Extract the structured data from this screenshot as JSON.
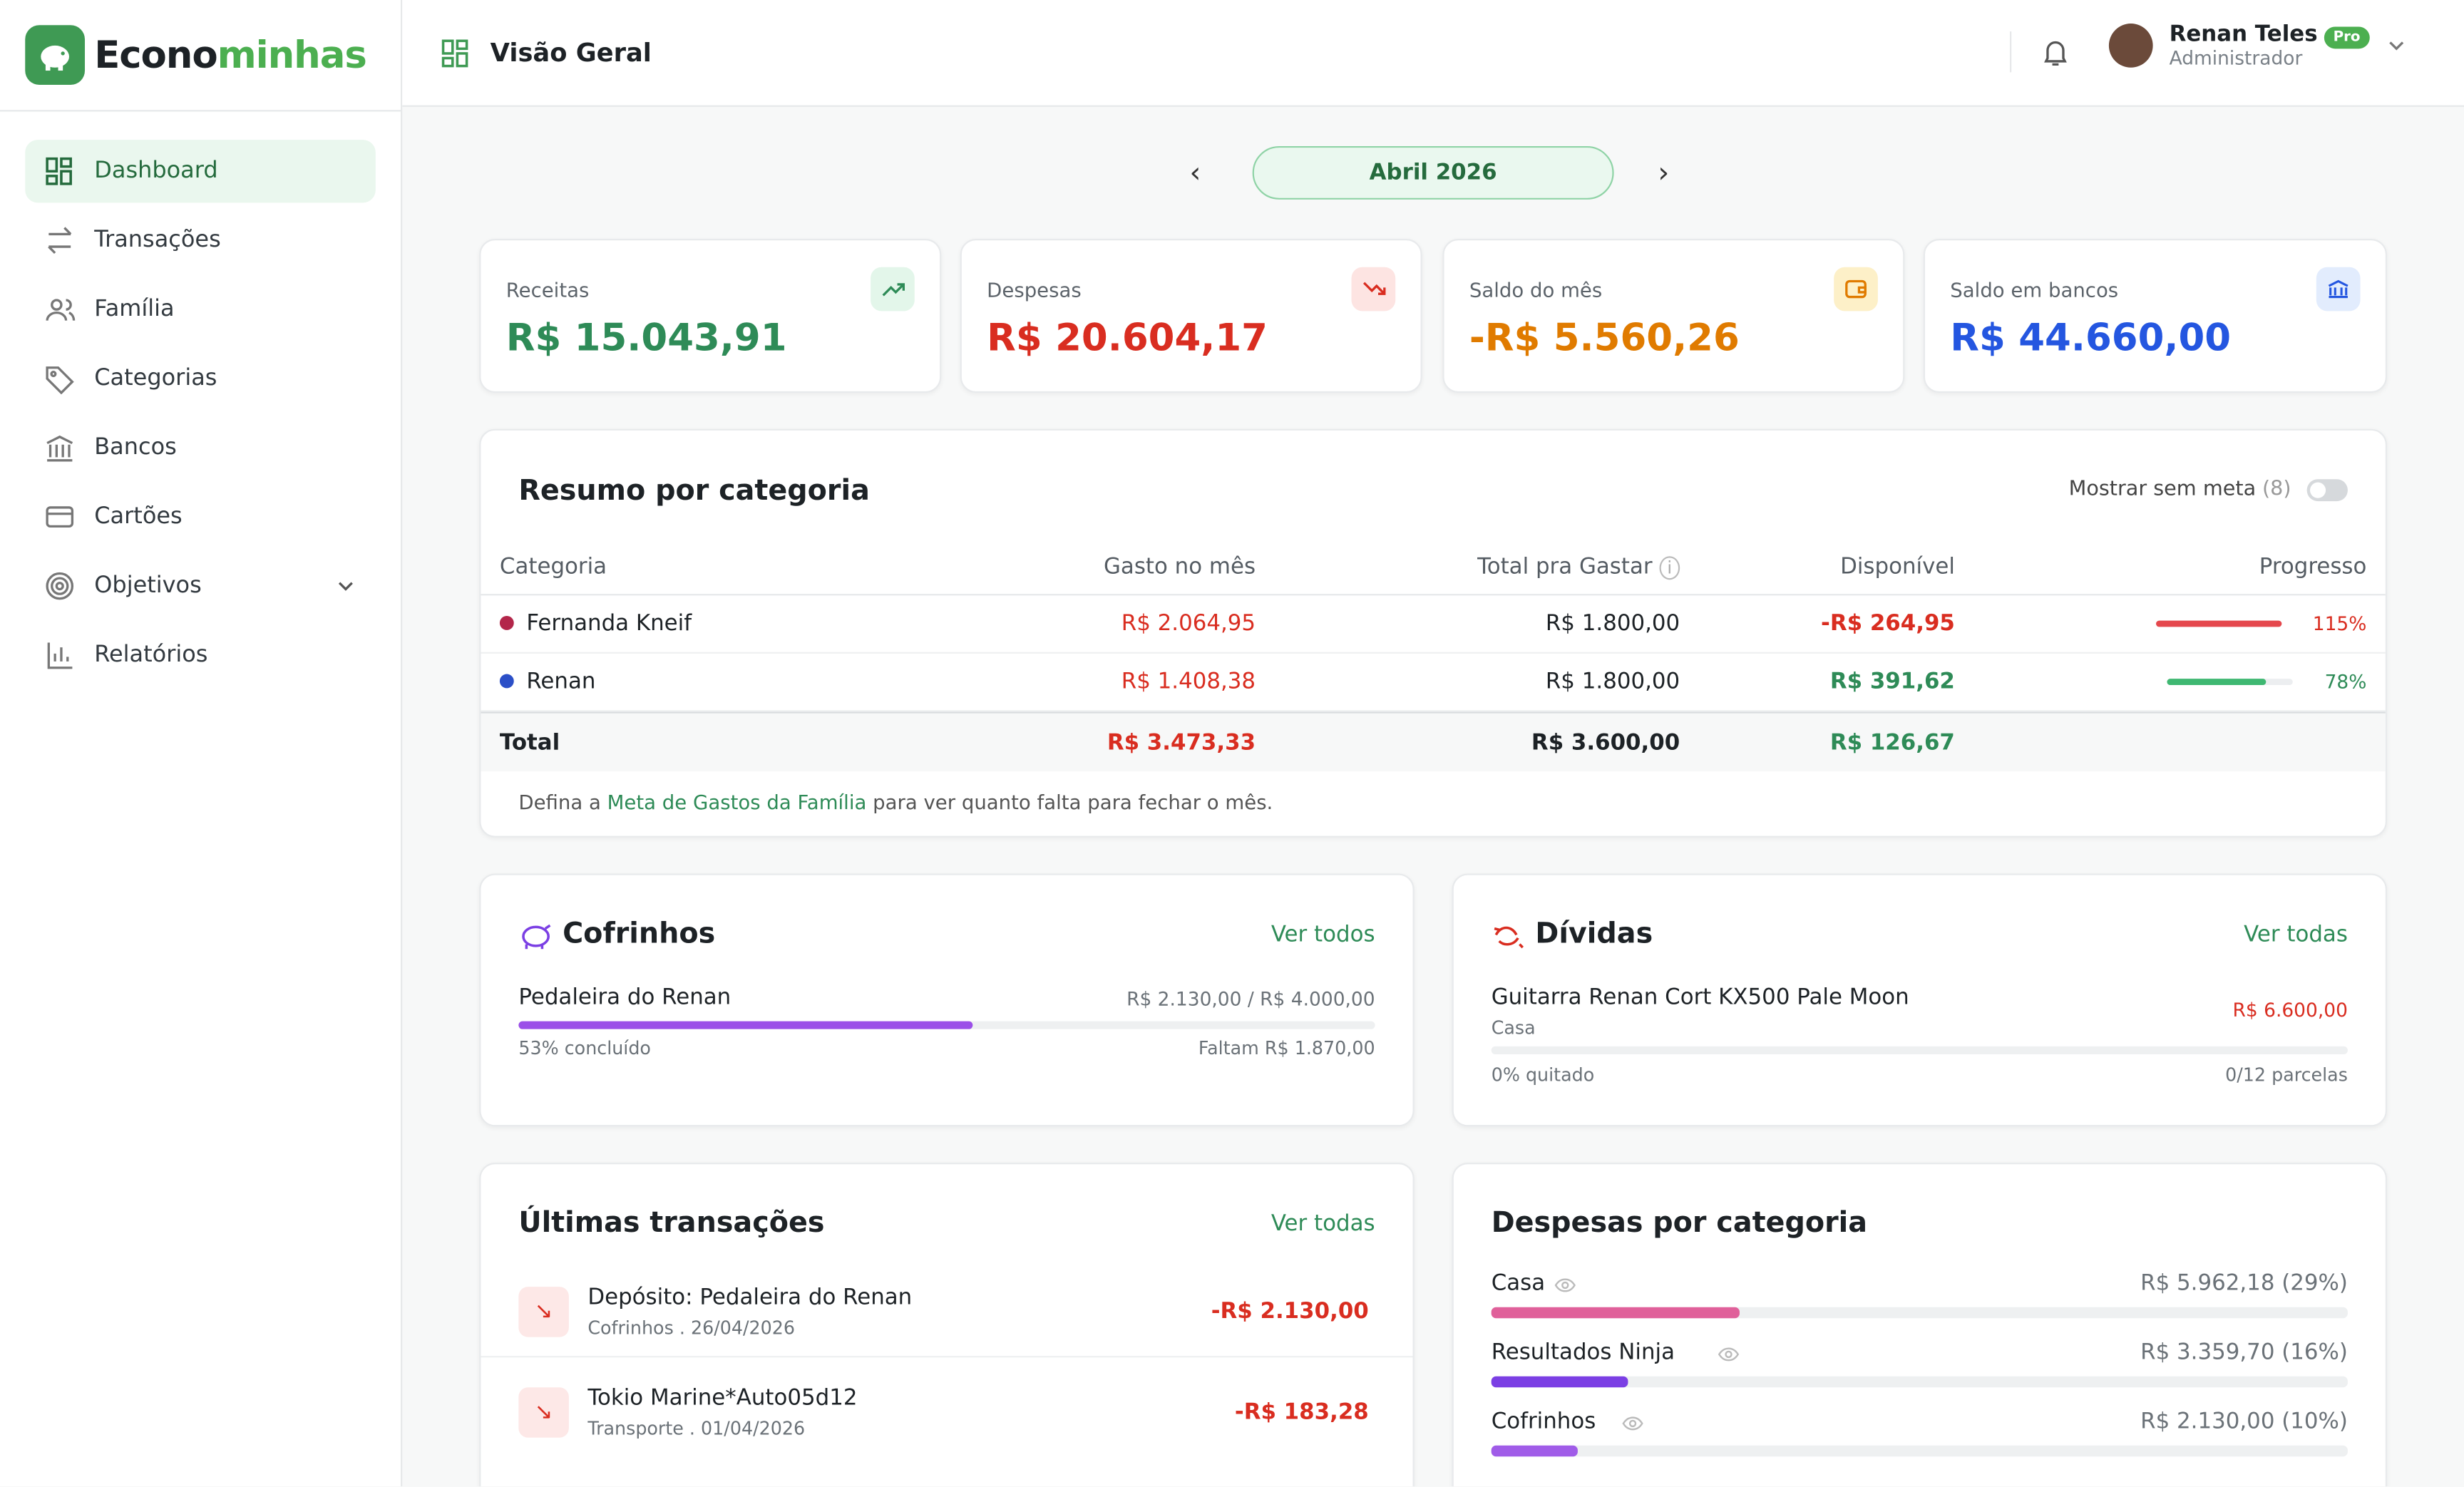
{
  "brand": [
    "Econo",
    "minhas"
  ],
  "nav": [
    "Dashboard",
    "Transações",
    "Família",
    "Categorias",
    "Bancos",
    "Cartões",
    "Objetivos",
    "Relatórios"
  ],
  "header": {
    "title": "Visão Geral",
    "user_name": "Renan Teles",
    "user_role": "Administrador",
    "badge": "Pro"
  },
  "month": "Abril 2026",
  "kpis": [
    {
      "label": "Receitas",
      "value": "R$ 15.043,91"
    },
    {
      "label": "Despesas",
      "value": "R$ 20.604,17"
    },
    {
      "label": "Saldo do mês",
      "value": "-R$ 5.560,26"
    },
    {
      "label": "Saldo em bancos",
      "value": "R$ 44.660,00"
    }
  ],
  "summary": {
    "title": "Resumo por categoria",
    "toggle_label": "Mostrar sem meta",
    "toggle_count": "(8)",
    "columns": [
      "Categoria",
      "Gasto no mês",
      "Total pra Gastar",
      "Disponível",
      "Progresso"
    ],
    "rows": [
      [
        "Fernanda Kneif",
        "R$ 2.064,95",
        "R$ 1.800,00",
        "-R$ 264,95",
        "115%"
      ],
      [
        "Renan",
        "R$ 1.408,38",
        "R$ 1.800,00",
        "R$ 391,62",
        "78%"
      ]
    ],
    "total": [
      "Total",
      "R$ 3.473,33",
      "R$ 3.600,00",
      "R$ 126,67"
    ],
    "note": [
      "Defina a ",
      "Meta de Gastos da Família",
      " para ver quanto falta para fechar o mês."
    ]
  },
  "piggy": {
    "title": "Cofrinhos",
    "link": "Ver todos",
    "name": "Pedaleira do Renan",
    "amount": "R$ 2.130,00 / R$ 4.000,00",
    "progress": "53% concluído",
    "remaining": "Faltam R$ 1.870,00"
  },
  "debts": {
    "title": "Dívidas",
    "link": "Ver todas",
    "name": "Guitarra Renan Cort KX500 Pale Moon",
    "category": "Casa",
    "amount": "R$ 6.600,00",
    "progress": "0% quitado",
    "installments": "0/12 parcelas"
  },
  "transactions": {
    "title": "Últimas transações",
    "link": "Ver todas",
    "items": [
      {
        "name": "Depósito: Pedaleira do Renan",
        "meta": "Cofrinhos . 26/04/2026",
        "amount": "-R$ 2.130,00"
      },
      {
        "name": "Tokio Marine*Auto05d12",
        "meta": "Transporte . 01/04/2026",
        "amount": "-R$ 183,28"
      }
    ]
  },
  "expenses": {
    "title": "Despesas por categoria",
    "items": [
      {
        "name": "Casa",
        "value": "R$ 5.962,18 (29%)",
        "color": "#e0609a"
      },
      {
        "name": "Resultados Ninja",
        "value": "R$ 3.359,70 (16%)",
        "color": "#7b3fe4"
      },
      {
        "name": "Cofrinhos",
        "value": "R$ 2.130,00 (10%)",
        "color": "#a05ce8"
      }
    ]
  }
}
